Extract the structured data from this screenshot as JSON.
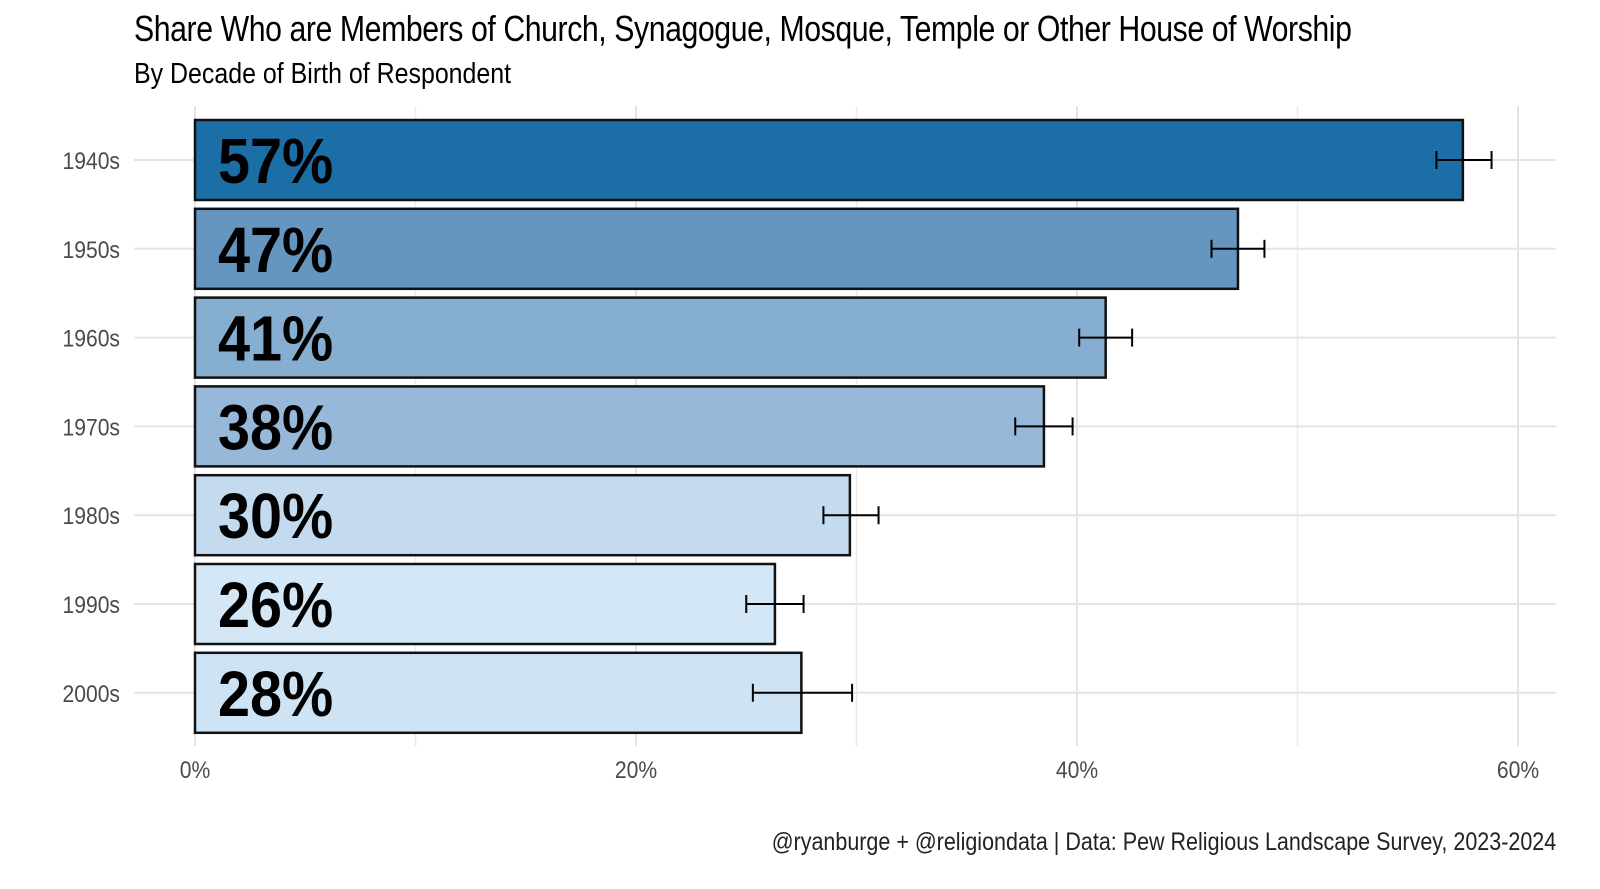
{
  "chart_data": {
    "type": "bar",
    "orientation": "horizontal",
    "title": "Share Who are Members of Church, Synagogue, Mosque, Temple or Other House of Worship",
    "subtitle": "By Decade of Birth of Respondent",
    "caption": "@ryanburge + @religiondata | Data: Pew Religious Landscape Survey, 2023-2024",
    "xlabel": "",
    "ylabel": "",
    "xlim": [
      0,
      60
    ],
    "x_ticks": [
      {
        "value": 0,
        "label": "0%"
      },
      {
        "value": 20,
        "label": "20%"
      },
      {
        "value": 40,
        "label": "40%"
      },
      {
        "value": 60,
        "label": "60%"
      }
    ],
    "grid": true,
    "legend": "none",
    "categories": [
      "1940s",
      "1950s",
      "1960s",
      "1970s",
      "1980s",
      "1990s",
      "2000s"
    ],
    "values": [
      57.5,
      47.3,
      41.3,
      38.5,
      29.7,
      26.3,
      27.5
    ],
    "labels": [
      "57%",
      "47%",
      "41%",
      "38%",
      "30%",
      "26%",
      "28%"
    ],
    "error_low": [
      56.3,
      46.1,
      40.1,
      37.2,
      28.5,
      25.0,
      25.3
    ],
    "error_high": [
      58.8,
      48.5,
      42.5,
      39.8,
      31.0,
      27.6,
      29.8
    ],
    "colors": [
      "#1c6fa6",
      "#6596c0",
      "#86aed0",
      "#97b8d8",
      "#c4dbef",
      "#d3e7f6",
      "#cee3f3"
    ]
  }
}
